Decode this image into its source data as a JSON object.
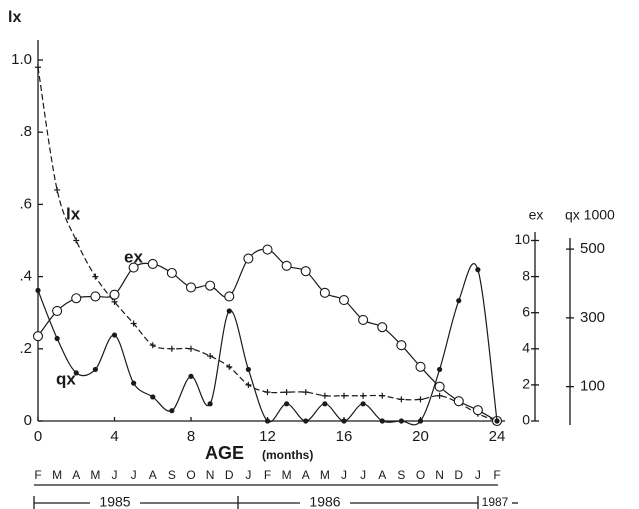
{
  "chart_data": {
    "type": "line",
    "y_label": "lx",
    "y2_label": "ex",
    "y3_label": "qx 1000",
    "x_label": "AGE",
    "x_label_unit": "(months)",
    "x": [
      0,
      1,
      2,
      3,
      4,
      5,
      6,
      7,
      8,
      9,
      10,
      11,
      12,
      13,
      14,
      15,
      16,
      17,
      18,
      19,
      20,
      21,
      22,
      23,
      24
    ],
    "xlim": [
      0,
      24
    ],
    "xticks": [
      0,
      4,
      8,
      12,
      16,
      20,
      24
    ],
    "ylim": [
      0,
      1
    ],
    "yticks": [
      0,
      {
        "value": 0.2,
        "label": ".2"
      },
      {
        "value": 0.4,
        "label": ".4"
      },
      {
        "value": 0.6,
        "label": ".6"
      },
      {
        "value": 0.8,
        "label": ".8"
      },
      {
        "value": 1.0,
        "label": "1.0"
      }
    ],
    "y2lim": [
      0,
      20
    ],
    "y2ticks": [
      0,
      2,
      4,
      6,
      8,
      10
    ],
    "y3lim": [
      0,
      1050
    ],
    "y3ticks": [
      100,
      300,
      500
    ],
    "series": [
      {
        "name": "lx",
        "color": "#1a1a1a",
        "marker": "plus",
        "values": [
          0.98,
          0.64,
          0.5,
          0.4,
          0.33,
          0.27,
          0.21,
          0.2,
          0.2,
          0.18,
          0.15,
          0.1,
          0.08,
          0.08,
          0.08,
          0.07,
          0.07,
          0.07,
          0.07,
          0.06,
          0.06,
          0.07,
          0.05,
          0.02,
          0
        ]
      },
      {
        "name": "ex",
        "color": "#1a1a1a",
        "marker": "circle-open",
        "axis": "y2",
        "values": [
          4.7,
          6.1,
          6.8,
          6.9,
          7.0,
          8.5,
          8.7,
          8.2,
          7.4,
          7.5,
          6.9,
          9.0,
          9.5,
          8.6,
          8.3,
          7.1,
          6.7,
          5.6,
          5.2,
          4.2,
          3.0,
          1.9,
          1.1,
          0.6,
          0
        ]
      },
      {
        "name": "qx",
        "color": "#1a1a1a",
        "marker": "dot",
        "axis": "y3",
        "values": [
          380,
          240,
          140,
          150,
          250,
          110,
          70,
          30,
          130,
          50,
          320,
          150,
          0,
          50,
          0,
          50,
          0,
          50,
          0,
          0,
          0,
          150,
          350,
          440,
          0
        ]
      }
    ],
    "months": [
      "F",
      "M",
      "A",
      "M",
      "J",
      "J",
      "A",
      "S",
      "O",
      "N",
      "D",
      "J",
      "F",
      "M",
      "A",
      "M",
      "J",
      "J",
      "A",
      "S",
      "O",
      "N",
      "D",
      "J",
      "F"
    ],
    "years": [
      "1985",
      "1986",
      "1987"
    ]
  }
}
